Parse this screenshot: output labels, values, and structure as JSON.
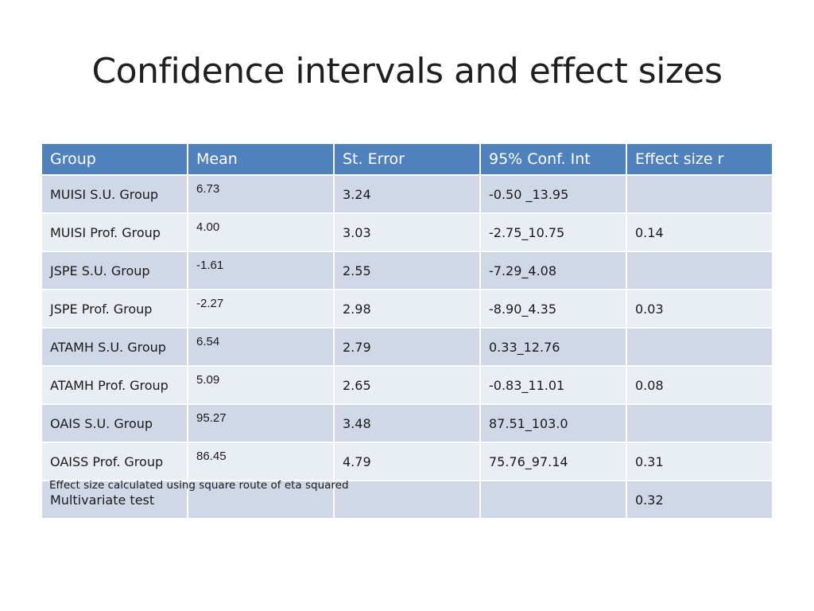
{
  "title": "Confidence intervals and effect sizes",
  "table": {
    "headers": [
      "Group",
      "Mean",
      "St. Error",
      "95% Conf. Int",
      "Effect size r"
    ],
    "rows": [
      [
        "MUISI S.U. Group",
        "6.73",
        "3.24",
        "-0.50 _13.95",
        ""
      ],
      [
        "MUISI Prof. Group",
        "4.00",
        "3.03",
        "-2.75_10.75",
        "0.14"
      ],
      [
        "JSPE S.U. Group",
        "-1.61",
        "2.55",
        "-7.29_4.08",
        ""
      ],
      [
        "JSPE Prof. Group",
        "-2.27",
        "2.98",
        "-8.90_4.35",
        "0.03"
      ],
      [
        "ATAMH S.U. Group",
        "6.54",
        "2.79",
        "0.33_12.76",
        ""
      ],
      [
        "ATAMH Prof. Group",
        "5.09",
        "2.65",
        "-0.83_11.01",
        "0.08"
      ],
      [
        "OAIS S.U. Group",
        "95.27",
        "3.48",
        "87.51_103.0",
        ""
      ],
      [
        "OAISS Prof. Group",
        "86.45",
        "4.79",
        "75.76_97.14",
        "0.31"
      ],
      [
        "Multivariate test",
        "",
        "",
        "",
        "0.32"
      ]
    ]
  },
  "footnote": "Effect size calculated using square route of eta squared",
  "colors": {
    "header_bg": "#4f81bd",
    "row_odd": "#d0d8e8",
    "row_even": "#e9edf4"
  }
}
